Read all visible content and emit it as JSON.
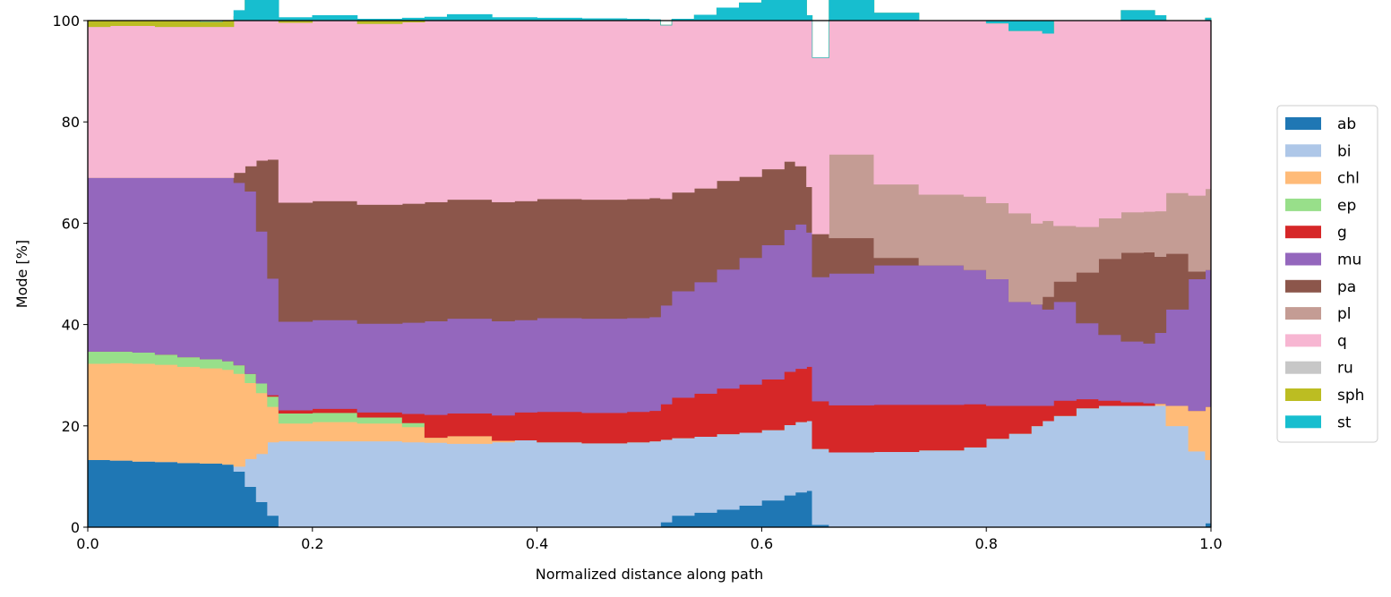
{
  "chart_data": {
    "type": "area",
    "xlabel": "Normalized distance along path",
    "ylabel": "Mode [%]",
    "xlim": [
      0.0,
      1.0
    ],
    "ylim": [
      0,
      100
    ],
    "xticks": [
      "0.0",
      "0.2",
      "0.4",
      "0.6",
      "0.8",
      "1.0"
    ],
    "yticks": [
      "0",
      "20",
      "40",
      "60",
      "80",
      "100"
    ],
    "grid": false,
    "legend_position": "right",
    "step": true,
    "x": [
      0.0,
      0.02,
      0.04,
      0.06,
      0.08,
      0.1,
      0.12,
      0.13,
      0.14,
      0.15,
      0.16,
      0.17,
      0.2,
      0.24,
      0.28,
      0.3,
      0.32,
      0.36,
      0.38,
      0.4,
      0.44,
      0.48,
      0.5,
      0.51,
      0.52,
      0.54,
      0.56,
      0.58,
      0.6,
      0.62,
      0.63,
      0.64,
      0.645,
      0.66,
      0.7,
      0.74,
      0.78,
      0.8,
      0.82,
      0.84,
      0.85,
      0.86,
      0.88,
      0.9,
      0.92,
      0.94,
      0.95,
      0.96,
      0.98,
      0.995,
      1.0
    ],
    "series": [
      {
        "name": "ab",
        "color": "#1f77b4",
        "values": [
          13.3,
          13.2,
          13.0,
          12.9,
          12.7,
          12.6,
          12.4,
          11.0,
          8.0,
          5.0,
          2.3,
          0,
          0,
          0,
          0,
          0,
          0,
          0,
          0,
          0,
          0,
          0,
          0,
          1.0,
          2.3,
          2.9,
          3.5,
          4.3,
          5.3,
          6.3,
          6.9,
          7.2,
          0.5,
          0,
          0,
          0,
          0,
          0,
          0,
          0,
          0,
          0,
          0,
          0,
          0,
          0,
          0,
          0,
          0,
          0.8,
          0.8
        ]
      },
      {
        "name": "bi",
        "color": "#aec7e8",
        "values": [
          0,
          0,
          0,
          0,
          0,
          0,
          0,
          1.0,
          5.5,
          9.5,
          14.5,
          17.0,
          17.0,
          17.0,
          16.8,
          16.7,
          16.5,
          16.8,
          17.2,
          16.8,
          16.6,
          16.8,
          17.0,
          16.3,
          15.3,
          15.0,
          14.9,
          14.4,
          13.9,
          13.9,
          13.9,
          13.8,
          15.0,
          14.8,
          14.9,
          15.2,
          15.8,
          17.5,
          18.5,
          20.0,
          21.0,
          22.0,
          23.5,
          24.0,
          24.0,
          24.0,
          24.0,
          20.0,
          15.0,
          12.5,
          12.5
        ]
      },
      {
        "name": "chl",
        "color": "#ffbb78",
        "values": [
          19.0,
          19.2,
          19.3,
          19.2,
          19.0,
          18.8,
          18.7,
          18.3,
          15.0,
          12.0,
          7.0,
          3.5,
          3.8,
          3.5,
          3.0,
          1.0,
          1.5,
          0.3,
          0,
          0,
          0,
          0,
          0,
          0,
          0,
          0,
          0,
          0,
          0,
          0,
          0,
          0,
          0,
          0,
          0,
          0,
          0,
          0,
          0,
          0,
          0,
          0,
          0,
          0,
          0,
          0,
          0.4,
          4.0,
          8.0,
          10.5,
          10.5
        ]
      },
      {
        "name": "ep",
        "color": "#98df8a",
        "values": [
          2.4,
          2.3,
          2.2,
          2.0,
          1.9,
          1.8,
          1.7,
          1.7,
          1.8,
          1.9,
          2.0,
          2.0,
          1.8,
          1.2,
          0.8,
          0,
          0,
          0,
          0,
          0,
          0,
          0,
          0,
          0,
          0,
          0,
          0,
          0,
          0,
          0,
          0,
          0,
          0,
          0,
          0,
          0,
          0,
          0,
          0,
          0,
          0,
          0,
          0,
          0,
          0,
          0,
          0,
          0,
          0,
          0,
          0
        ]
      },
      {
        "name": "g",
        "color": "#d62728",
        "values": [
          0,
          0,
          0,
          0,
          0,
          0,
          0,
          0,
          0,
          0,
          0.3,
          0.6,
          0.8,
          1.0,
          1.8,
          4.5,
          4.5,
          5.0,
          5.5,
          6.0,
          6.0,
          6.0,
          6.0,
          7.0,
          8.0,
          8.5,
          9.0,
          9.5,
          10.0,
          10.5,
          10.5,
          10.7,
          9.4,
          9.3,
          9.3,
          9.0,
          8.5,
          6.5,
          5.5,
          4.0,
          3.0,
          3.0,
          1.8,
          1.0,
          0.7,
          0.5,
          0,
          0,
          0,
          0,
          0
        ]
      },
      {
        "name": "mu",
        "color": "#9467bd",
        "values": [
          34.3,
          34.3,
          34.5,
          34.9,
          35.4,
          35.8,
          36.2,
          36.0,
          36.0,
          30.0,
          23.0,
          17.5,
          17.5,
          17.5,
          18.0,
          18.5,
          18.7,
          18.6,
          18.2,
          18.5,
          18.6,
          18.5,
          18.5,
          19.5,
          21.0,
          22.0,
          23.5,
          25.0,
          26.5,
          28.0,
          28.5,
          26.5,
          24.5,
          26.0,
          27.5,
          27.5,
          26.5,
          25.0,
          20.5,
          20.0,
          19.0,
          19.5,
          15.0,
          13.0,
          12.0,
          11.8,
          14.0,
          19.0,
          26.0,
          27.0,
          27.0
        ]
      },
      {
        "name": "pa",
        "color": "#8c564b",
        "values": [
          0,
          0,
          0,
          0,
          0,
          0,
          0,
          2.0,
          5.0,
          14.0,
          23.5,
          23.5,
          23.5,
          23.5,
          23.5,
          23.5,
          23.5,
          23.5,
          23.5,
          23.5,
          23.5,
          23.5,
          23.5,
          21.0,
          19.5,
          18.5,
          17.5,
          16.0,
          15.0,
          13.5,
          11.5,
          9.0,
          8.5,
          7.0,
          1.5,
          0,
          0,
          0,
          0,
          0,
          2.5,
          4.0,
          10.0,
          15.0,
          17.5,
          18.0,
          15.0,
          11.0,
          1.5,
          0,
          0
        ]
      },
      {
        "name": "pl",
        "color": "#c49c94",
        "values": [
          0,
          0,
          0,
          0,
          0,
          0,
          0,
          0,
          0,
          0,
          0,
          0,
          0,
          0,
          0,
          0,
          0,
          0,
          0,
          0,
          0,
          0,
          0,
          0,
          0,
          0,
          0,
          0,
          0,
          0,
          0,
          0,
          0,
          16.5,
          14.5,
          14.0,
          14.5,
          15.0,
          17.5,
          16.0,
          15.0,
          11.0,
          9.0,
          8.0,
          8.0,
          8.0,
          9.0,
          12.0,
          15.0,
          16.0,
          16.0
        ]
      },
      {
        "name": "q",
        "color": "#f7b6d2",
        "values": [
          29.8,
          30.0,
          30.0,
          29.8,
          29.8,
          29.8,
          29.8,
          30.8,
          33.0,
          35.0,
          35.5,
          35.5,
          35.6,
          35.7,
          35.8,
          35.8,
          35.8,
          35.8,
          35.6,
          35.2,
          35.3,
          35.2,
          35.0,
          34.3,
          34.2,
          34.2,
          34.1,
          34.3,
          34.0,
          33.8,
          33.8,
          33.8,
          34.8,
          33.9,
          33.8,
          34.3,
          34.7,
          35.5,
          36.0,
          38.0,
          37.0,
          40.5,
          40.7,
          39.0,
          39.8,
          39.7,
          38.6,
          34.0,
          34.5,
          33.7,
          33.7
        ]
      },
      {
        "name": "ru",
        "color": "#c7c7c7",
        "values": [
          0,
          0,
          0,
          0,
          0,
          0,
          0,
          0,
          0,
          0,
          0,
          0,
          0,
          0,
          0,
          0,
          0,
          0,
          0,
          0,
          0,
          0,
          0,
          0,
          0,
          0,
          0,
          0,
          0,
          0,
          0,
          0,
          0,
          0,
          0,
          0,
          0,
          0,
          0,
          0,
          0,
          0,
          0,
          0,
          0,
          0,
          0,
          0,
          0,
          0,
          0
        ]
      },
      {
        "name": "sph",
        "color": "#bcbd22",
        "values": [
          1.2,
          1.0,
          1.0,
          1.2,
          1.2,
          1.0,
          1.2,
          1.2,
          1.2,
          1.2,
          1.2,
          1.0,
          1.0,
          0.9,
          0.8,
          0.7,
          0.7,
          0.6,
          0.6,
          0.5,
          0.4,
          0.3,
          0.2,
          0,
          0,
          0,
          0,
          0,
          0,
          0,
          0,
          0,
          0,
          0,
          0,
          0,
          0,
          0,
          0,
          0,
          0,
          0,
          0,
          0,
          0,
          0,
          0,
          0,
          0,
          0,
          0
        ]
      },
      {
        "name": "st",
        "color": "#17becf",
        "values": [
          0,
          0,
          0,
          0,
          0,
          0,
          0,
          0,
          0,
          0,
          0,
          0,
          0,
          0,
          0,
          0,
          0,
          0,
          0,
          0,
          0,
          0,
          0,
          0,
          0,
          0,
          0,
          0,
          0,
          0,
          0,
          0,
          0,
          0,
          0,
          0,
          0,
          0.5,
          2.0,
          2.0,
          3.0,
          0,
          0,
          0,
          0,
          0,
          0,
          0,
          0,
          0,
          0
        ]
      }
    ]
  }
}
